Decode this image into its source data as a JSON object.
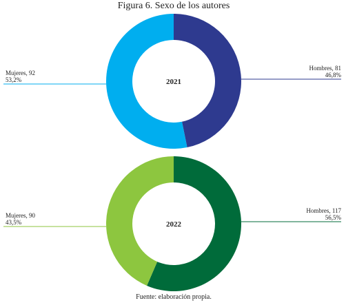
{
  "title": "Figura 6. Sexo de los autores",
  "source": "Fuente: elaboración propia.",
  "chart_data": [
    {
      "type": "donut",
      "center_label": "2021",
      "categories": [
        "Hombres, 81",
        "Mujeres, 92"
      ],
      "values": [
        46.8,
        53.2
      ],
      "value_labels": [
        "46,8%",
        "53,2%"
      ],
      "colors": [
        "#2e3a8f",
        "#00aeef"
      ]
    },
    {
      "type": "donut",
      "center_label": "2022",
      "categories": [
        "Hombres, 117",
        "Mujeres, 90"
      ],
      "values": [
        56.5,
        43.5
      ],
      "value_labels": [
        "56,5%",
        "43,5%"
      ],
      "colors": [
        "#006b3a",
        "#8dc63f"
      ]
    }
  ]
}
